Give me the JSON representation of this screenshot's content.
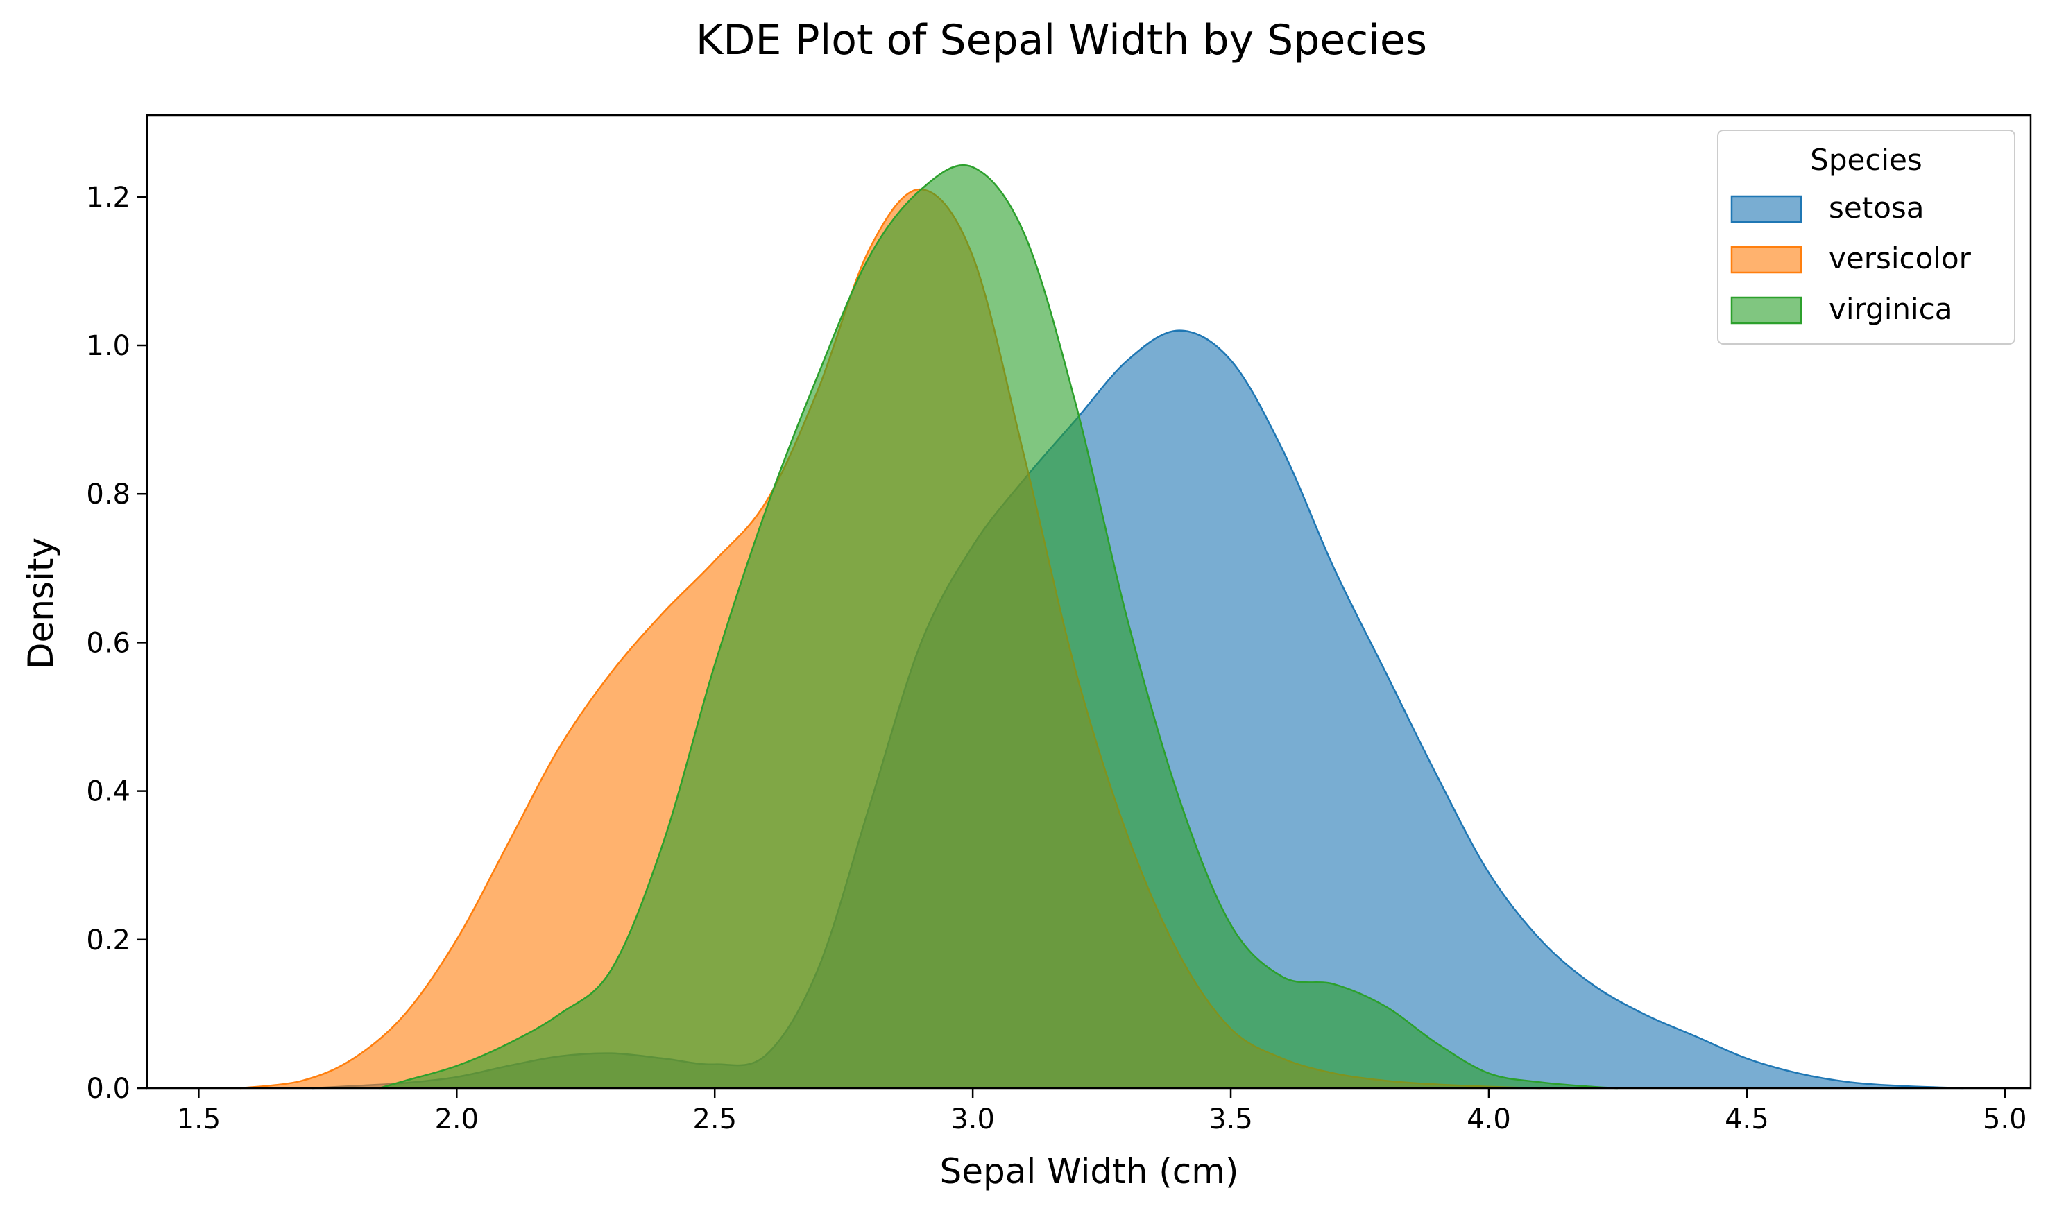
{
  "chart_data": {
    "type": "area",
    "title": "KDE Plot of Sepal Width by Species",
    "xlabel": "Sepal Width (cm)",
    "ylabel": "Density",
    "xlim": [
      1.4,
      5.05
    ],
    "ylim": [
      0,
      1.31
    ],
    "x_ticks": [
      "1.5",
      "2.0",
      "2.5",
      "3.0",
      "3.5",
      "4.0",
      "4.5",
      "5.0"
    ],
    "y_ticks": [
      "0.0",
      "0.2",
      "0.4",
      "0.6",
      "0.8",
      "1.0",
      "1.2"
    ],
    "grid": false,
    "fill_opacity": 0.6,
    "legend": {
      "title": "Species",
      "placement": "top-right"
    },
    "series": [
      {
        "name": "setosa",
        "color": "#1f77b4",
        "x": [
          1.72,
          1.8,
          1.9,
          2.0,
          2.1,
          2.2,
          2.3,
          2.4,
          2.5,
          2.6,
          2.7,
          2.8,
          2.9,
          3.0,
          3.1,
          3.2,
          3.3,
          3.4,
          3.5,
          3.6,
          3.7,
          3.8,
          3.9,
          4.0,
          4.1,
          4.2,
          4.3,
          4.4,
          4.5,
          4.6,
          4.7,
          4.8,
          4.92
        ],
        "y": [
          0.0,
          0.003,
          0.007,
          0.015,
          0.03,
          0.043,
          0.047,
          0.04,
          0.032,
          0.045,
          0.16,
          0.38,
          0.6,
          0.73,
          0.82,
          0.9,
          0.98,
          1.02,
          0.98,
          0.86,
          0.7,
          0.56,
          0.42,
          0.29,
          0.2,
          0.14,
          0.1,
          0.07,
          0.04,
          0.02,
          0.008,
          0.003,
          0.0
        ]
      },
      {
        "name": "versicolor",
        "color": "#ff7f0e",
        "x": [
          1.58,
          1.7,
          1.8,
          1.9,
          2.0,
          2.1,
          2.2,
          2.3,
          2.4,
          2.5,
          2.6,
          2.7,
          2.8,
          2.9,
          3.0,
          3.1,
          3.2,
          3.3,
          3.4,
          3.5,
          3.6,
          3.7,
          3.8,
          3.9,
          4.0,
          4.1
        ],
        "y": [
          0.0,
          0.01,
          0.04,
          0.1,
          0.2,
          0.33,
          0.46,
          0.56,
          0.64,
          0.71,
          0.79,
          0.94,
          1.13,
          1.21,
          1.12,
          0.85,
          0.56,
          0.34,
          0.18,
          0.08,
          0.04,
          0.02,
          0.01,
          0.005,
          0.002,
          0.0
        ]
      },
      {
        "name": "virginica",
        "color": "#2ca02c",
        "x": [
          1.85,
          1.9,
          2.0,
          2.1,
          2.2,
          2.3,
          2.4,
          2.5,
          2.6,
          2.7,
          2.8,
          2.9,
          3.0,
          3.1,
          3.2,
          3.3,
          3.4,
          3.5,
          3.6,
          3.7,
          3.8,
          3.9,
          4.0,
          4.1,
          4.2,
          4.25
        ],
        "y": [
          0.0,
          0.01,
          0.03,
          0.06,
          0.1,
          0.16,
          0.33,
          0.57,
          0.78,
          0.96,
          1.12,
          1.21,
          1.24,
          1.15,
          0.92,
          0.63,
          0.39,
          0.22,
          0.15,
          0.14,
          0.11,
          0.06,
          0.02,
          0.008,
          0.002,
          0.0
        ]
      }
    ]
  }
}
